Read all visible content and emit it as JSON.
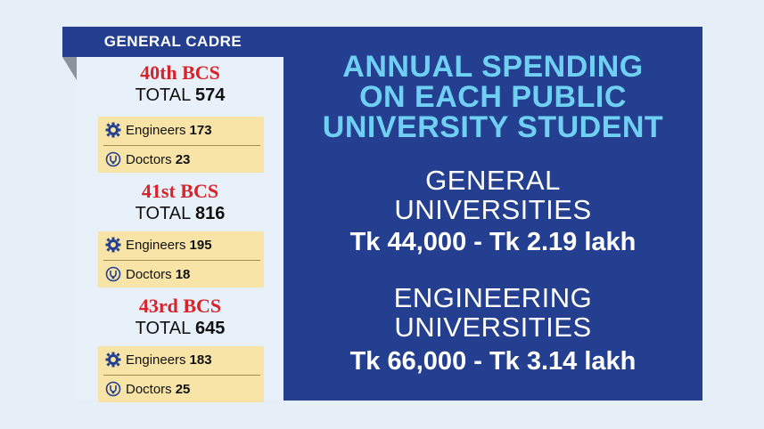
{
  "left": {
    "header": "GENERAL CADRE",
    "blocks": [
      {
        "title": "40th BCS",
        "total_label": "TOTAL",
        "total_value": "574",
        "engineers_label": "Engineers",
        "engineers_value": "173",
        "doctors_label": "Doctors",
        "doctors_value": "23"
      },
      {
        "title": "41st BCS",
        "total_label": "TOTAL",
        "total_value": "816",
        "engineers_label": "Engineers",
        "engineers_value": "195",
        "doctors_label": "Doctors",
        "doctors_value": "18"
      },
      {
        "title": "43rd BCS",
        "total_label": "TOTAL",
        "total_value": "645",
        "engineers_label": "Engineers",
        "engineers_value": "183",
        "doctors_label": "Doctors",
        "doctors_value": "25"
      }
    ]
  },
  "right": {
    "title_lines": [
      "ANNUAL SPENDING",
      "ON EACH PUBLIC",
      "UNIVERSITY STUDENT"
    ],
    "general": {
      "lines": [
        "GENERAL",
        "UNIVERSITIES"
      ],
      "range": "Tk 44,000 - Tk 2.19 lakh"
    },
    "engineering": {
      "lines": [
        "ENGINEERING",
        "UNIVERSITIES"
      ],
      "range": "Tk 66,000 - Tk 3.14 lakh"
    }
  },
  "colors": {
    "navy": "#243f8f",
    "title_cyan": "#6fd0f3",
    "bcs_red": "#d8232a",
    "stat_box": "#f7e4a6",
    "background": "#e6eef8"
  },
  "icons": {
    "engineers": "gear-icon",
    "doctors": "stethoscope-icon"
  }
}
